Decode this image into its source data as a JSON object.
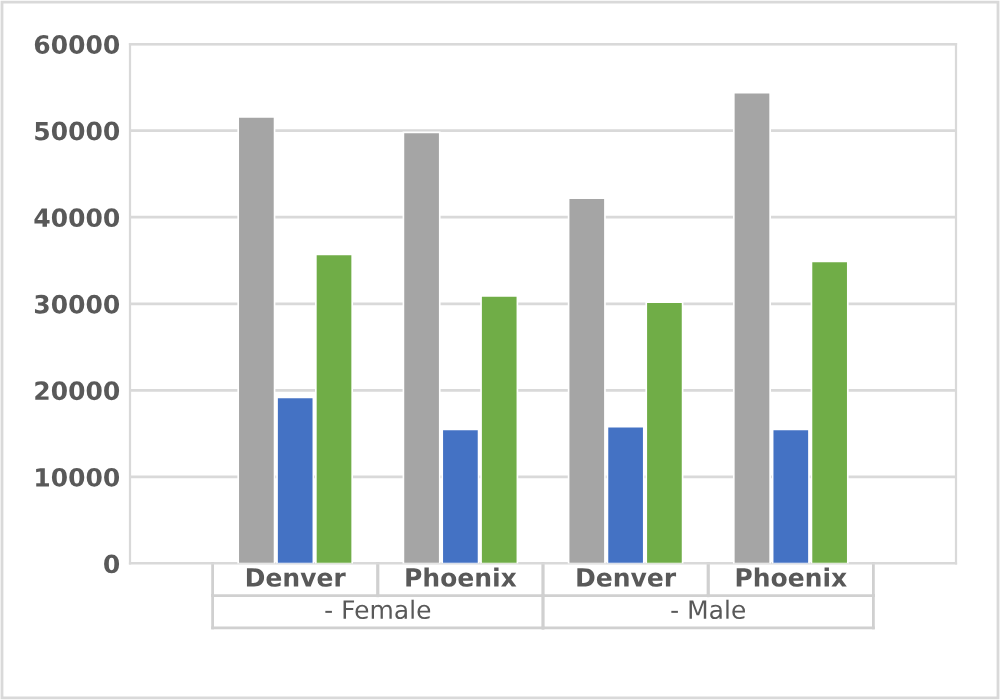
{
  "chart_data": {
    "type": "bar",
    "categories": [
      "Denver",
      "Phoenix",
      "Denver",
      "Phoenix"
    ],
    "series": [
      {
        "color": "#a5a5a5",
        "values": [
          51600,
          49800,
          42200,
          54400
        ]
      },
      {
        "color": "#4472c4",
        "values": [
          19200,
          15500,
          15800,
          15500
        ]
      },
      {
        "color": "#70ad47",
        "values": [
          35700,
          30900,
          30200,
          34900
        ]
      }
    ],
    "annotations": [
      "- Female",
      "- Male"
    ],
    "ylim": [
      0,
      60000
    ],
    "yticks": [
      0,
      10000,
      20000,
      30000,
      40000,
      50000,
      60000
    ],
    "grid": "y"
  }
}
